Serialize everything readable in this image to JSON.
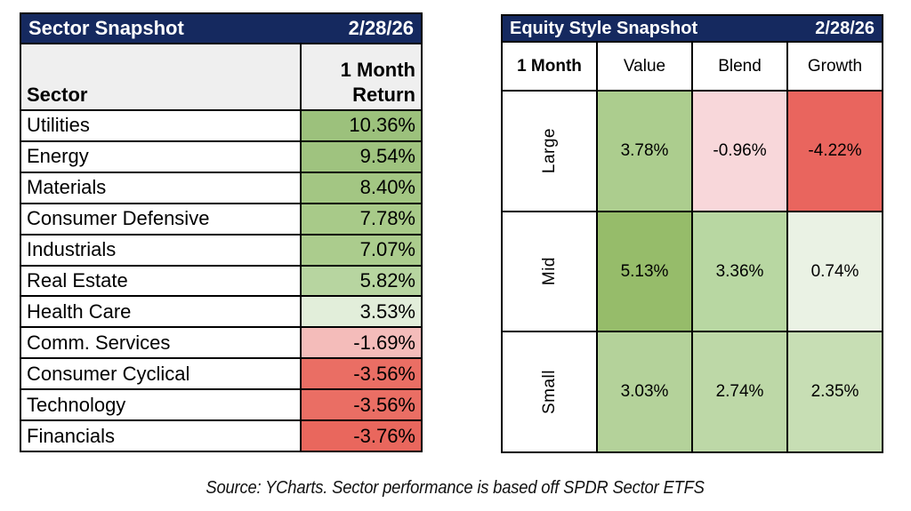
{
  "colors": {
    "header_navy": "#15295f",
    "subheader_gray": "#efefef",
    "border_black": "#000000",
    "positive_green_strong": "#9cc17c",
    "negative_red_strong": "#e9675d"
  },
  "sector_table": {
    "title": "Sector Snapshot",
    "date": "2/28/26",
    "sector_col_header": "Sector",
    "return_col_header_line1": "1 Month",
    "return_col_header_line2": "Return",
    "rows": [
      {
        "sector": "Utilities",
        "return": "10.36%",
        "bg": "#9cc17c"
      },
      {
        "sector": "Energy",
        "return": "9.54%",
        "bg": "#9fc37f"
      },
      {
        "sector": "Materials",
        "return": "8.40%",
        "bg": "#a3c683"
      },
      {
        "sector": "Consumer Defensive",
        "return": "7.78%",
        "bg": "#a8ca89"
      },
      {
        "sector": "Industrials",
        "return": "7.07%",
        "bg": "#abcc8d"
      },
      {
        "sector": "Real Estate",
        "return": "5.82%",
        "bg": "#b7d5a0"
      },
      {
        "sector": "Health Care",
        "return": "3.53%",
        "bg": "#e2eeda"
      },
      {
        "sector": "Comm. Services",
        "return": "-1.69%",
        "bg": "#f4bcba"
      },
      {
        "sector": "Consumer Cyclical",
        "return": "-3.56%",
        "bg": "#ea6e64"
      },
      {
        "sector": "Technology",
        "return": "-3.56%",
        "bg": "#ea6e64"
      },
      {
        "sector": "Financials",
        "return": "-3.76%",
        "bg": "#e9675d"
      }
    ]
  },
  "style_table": {
    "title": "Equity Style Snapshot",
    "date": "2/28/26",
    "corner_header": "1 Month",
    "col_headers": [
      "Value",
      "Blend",
      "Growth"
    ],
    "rows": [
      {
        "label": "Large",
        "cells": [
          {
            "value": "3.78%",
            "bg": "#accd8e"
          },
          {
            "value": "-0.96%",
            "bg": "#f8d7da"
          },
          {
            "value": "-4.22%",
            "bg": "#e9655e"
          }
        ]
      },
      {
        "label": "Mid",
        "cells": [
          {
            "value": "5.13%",
            "bg": "#96bc6a"
          },
          {
            "value": "3.36%",
            "bg": "#b8d7a2"
          },
          {
            "value": "0.74%",
            "bg": "#eaf2e4"
          }
        ]
      },
      {
        "label": "Small",
        "cells": [
          {
            "value": "3.03%",
            "bg": "#b4d29a"
          },
          {
            "value": "2.74%",
            "bg": "#bdd8a7"
          },
          {
            "value": "2.35%",
            "bg": "#c7deb4"
          }
        ]
      }
    ]
  },
  "footer": {
    "source_text": "Source: YCharts. Sector performance is based off SPDR Sector ETFS"
  },
  "chart_data": [
    {
      "type": "table",
      "title": "Sector Snapshot",
      "subtitle": "2/28/26",
      "columns": [
        "Sector",
        "1 Month Return"
      ],
      "rows": [
        [
          "Utilities",
          10.36
        ],
        [
          "Energy",
          9.54
        ],
        [
          "Materials",
          8.4
        ],
        [
          "Consumer Defensive",
          7.78
        ],
        [
          "Industrials",
          7.07
        ],
        [
          "Real Estate",
          5.82
        ],
        [
          "Health Care",
          3.53
        ],
        [
          "Comm. Services",
          -1.69
        ],
        [
          "Consumer Cyclical",
          -3.56
        ],
        [
          "Technology",
          -3.56
        ],
        [
          "Financials",
          -3.76
        ]
      ],
      "units": "percent",
      "color_coding": "green positive to red negative heat scale"
    },
    {
      "type": "heatmap",
      "title": "Equity Style Snapshot",
      "subtitle": "2/28/26",
      "period_label": "1 Month",
      "x_labels": [
        "Value",
        "Blend",
        "Growth"
      ],
      "y_labels": [
        "Large",
        "Mid",
        "Small"
      ],
      "values": [
        [
          3.78,
          -0.96,
          -4.22
        ],
        [
          5.13,
          3.36,
          0.74
        ],
        [
          3.03,
          2.74,
          2.35
        ]
      ],
      "units": "percent",
      "color_coding": "green positive to red negative heat scale"
    }
  ]
}
